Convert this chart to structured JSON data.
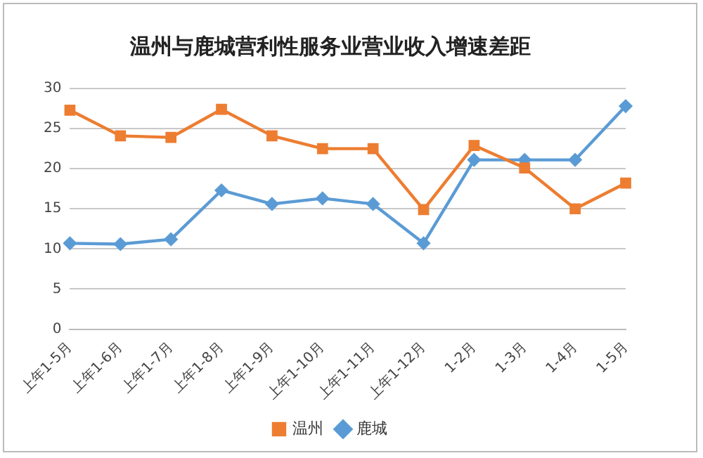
{
  "chart_data": {
    "type": "line",
    "title": "温州与鹿城营利性服务业营业收入增速差距",
    "categories": [
      "上年1-5月",
      "上年1-6月",
      "上年1-7月",
      "上年1-8月",
      "上年1-9月",
      "上年1-10月",
      "上年1-11月",
      "上年1-12月",
      "1-2月",
      "1-3月",
      "1-4月",
      "1-5月"
    ],
    "series": [
      {
        "name": "温州",
        "color": "#ed7d31",
        "marker": "square",
        "values": [
          27.3,
          24.1,
          23.9,
          27.4,
          24.1,
          22.5,
          22.5,
          14.9,
          22.9,
          20.1,
          15.0,
          18.2
        ]
      },
      {
        "name": "鹿城",
        "color": "#5b9bd5",
        "marker": "diamond",
        "values": [
          10.7,
          10.6,
          11.2,
          17.3,
          15.6,
          16.3,
          15.6,
          10.7,
          21.1,
          21.1,
          21.1,
          27.8
        ]
      }
    ],
    "ylim": [
      0,
      30
    ],
    "yticks": [
      0,
      5,
      10,
      15,
      20,
      25,
      30
    ],
    "grid": "y",
    "legend": "bottom"
  }
}
